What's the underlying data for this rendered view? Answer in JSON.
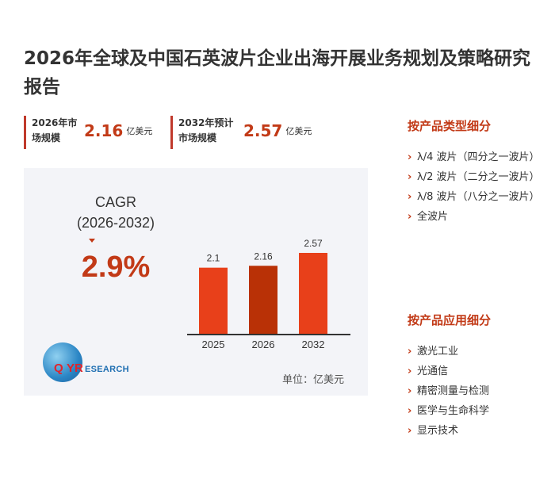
{
  "title": "2026年全球及中国石英波片企业出海开展业务规划及策略研究报告",
  "stats": [
    {
      "label": "2026年市场规模",
      "value": "2.16",
      "unit": "亿美元"
    },
    {
      "label": "2032年预计市场规模",
      "value": "2.57",
      "unit": "亿美元"
    }
  ],
  "cagr": {
    "label": "CAGR",
    "period": "(2026-2032)",
    "value": "2.9%"
  },
  "unit_note": "单位：亿美元",
  "logo": {
    "q": "Q",
    "yr": "YR",
    "research": "ESEARCH"
  },
  "chart_data": {
    "type": "bar",
    "categories": [
      "2025",
      "2026",
      "2032"
    ],
    "values": [
      2.1,
      2.16,
      2.57
    ],
    "value_labels": [
      "2.1",
      "2.16",
      "2.57"
    ],
    "colors": [
      "#e8401a",
      "#b93106",
      "#e8401a"
    ],
    "axis_color": "#333333",
    "title": "",
    "xlabel": "",
    "ylabel": ""
  },
  "sections": [
    {
      "heading": "按产品类型细分",
      "items": [
        "λ/4 波片（四分之一波片）",
        "λ/2 波片（二分之一波片）",
        "λ/8 波片（八分之一波片）",
        "全波片"
      ]
    },
    {
      "heading": "按产品应用细分",
      "items": [
        "激光工业",
        "光通信",
        "精密测量与检测",
        "医学与生命科学",
        "显示技术"
      ]
    }
  ],
  "bullet": "›"
}
